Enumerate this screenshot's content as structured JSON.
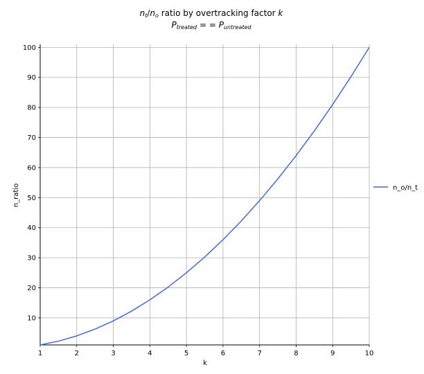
{
  "chart_data": {
    "type": "line",
    "title": "n_t/n_o ratio by overtracking factor k",
    "subtitle": "P_treated == P_untreated",
    "xlabel": "k",
    "ylabel": "n_ratio",
    "xlim": [
      1,
      10
    ],
    "ylim": [
      1,
      101
    ],
    "xticks": [
      1,
      2,
      3,
      4,
      5,
      6,
      7,
      8,
      9,
      10
    ],
    "yticks": [
      10,
      20,
      30,
      40,
      50,
      60,
      70,
      80,
      90,
      100
    ],
    "grid": true,
    "legend_position": "right",
    "series": [
      {
        "name": "n_o/n_t",
        "color": "#4169e1",
        "x": [
          1,
          1.5,
          2,
          2.5,
          3,
          3.5,
          4,
          4.5,
          5,
          5.5,
          6,
          6.5,
          7,
          7.5,
          8,
          8.5,
          9,
          9.5,
          10
        ],
        "y": [
          1,
          2.25,
          4,
          6.25,
          9,
          12.25,
          16,
          20.25,
          25,
          30.25,
          36,
          42.25,
          49,
          56.25,
          64,
          72.25,
          81,
          90.25,
          100
        ]
      }
    ]
  }
}
